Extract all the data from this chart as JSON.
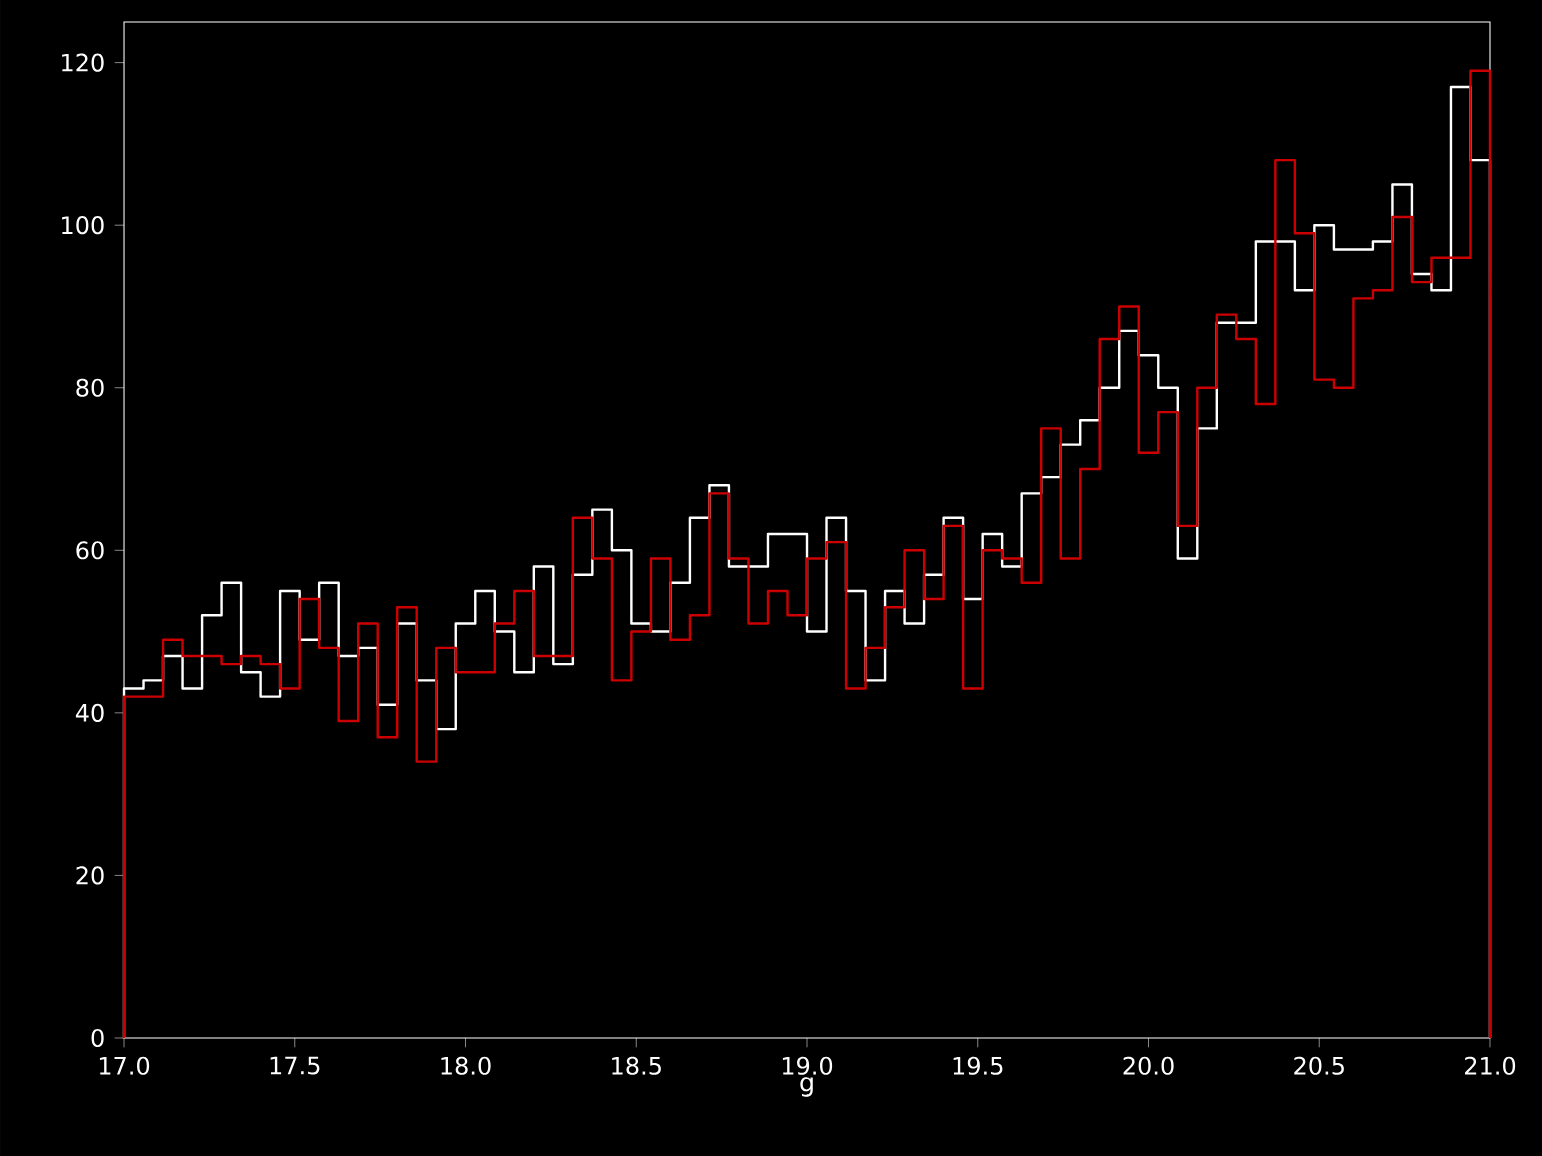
{
  "chart_data": {
    "type": "histogram",
    "xlabel": "g",
    "bins": [
      17.0,
      17.0571,
      17.1143,
      17.1714,
      17.2286,
      17.2857,
      17.3429,
      17.4,
      17.4571,
      17.5143,
      17.5714,
      17.6286,
      17.6857,
      17.7429,
      17.8,
      17.8571,
      17.9143,
      17.9714,
      18.0286,
      18.0857,
      18.1429,
      18.2,
      18.2571,
      18.3143,
      18.3714,
      18.4286,
      18.4857,
      18.5429,
      18.6,
      18.6571,
      18.7143,
      18.7714,
      18.8286,
      18.8857,
      18.9429,
      19.0,
      19.0571,
      19.1143,
      19.1714,
      19.2286,
      19.2857,
      19.3429,
      19.4,
      19.4571,
      19.5143,
      19.5714,
      19.6286,
      19.6857,
      19.7429,
      19.8,
      19.8571,
      19.9143,
      19.9714,
      20.0286,
      20.0857,
      20.1429,
      20.2,
      20.2571,
      20.3143,
      20.3714,
      20.4286,
      20.4857,
      20.5429,
      20.6,
      20.6571,
      20.7143,
      20.7714,
      20.8286,
      20.8857,
      20.9429,
      21.0
    ],
    "series": [
      {
        "color": "#ffffff",
        "values": [
          43,
          44,
          47,
          43,
          52,
          56,
          45,
          42,
          55,
          49,
          56,
          47,
          48,
          41,
          51,
          44,
          38,
          51,
          55,
          50,
          45,
          58,
          46,
          57,
          65,
          60,
          51,
          50,
          56,
          64,
          68,
          58,
          58,
          62,
          62,
          50,
          64,
          55,
          44,
          55,
          51,
          57,
          64,
          54,
          62,
          58,
          67,
          69,
          73,
          76,
          80,
          87,
          84,
          80,
          59,
          75,
          88,
          88,
          98,
          98,
          92,
          100,
          97,
          97,
          98,
          105,
          94,
          92,
          117,
          108
        ]
      },
      {
        "color": "#cc0000",
        "values": [
          42,
          42,
          49,
          47,
          47,
          46,
          47,
          46,
          43,
          54,
          48,
          39,
          51,
          37,
          53,
          34,
          48,
          45,
          45,
          51,
          55,
          47,
          47,
          64,
          59,
          44,
          50,
          59,
          49,
          52,
          67,
          59,
          51,
          55,
          52,
          59,
          61,
          43,
          48,
          53,
          60,
          54,
          63,
          43,
          60,
          59,
          56,
          75,
          59,
          70,
          86,
          90,
          72,
          77,
          63,
          80,
          89,
          86,
          78,
          108,
          99,
          81,
          80,
          91,
          92,
          101,
          93,
          96,
          96,
          119
        ]
      }
    ],
    "xlim": [
      17.0,
      21.0
    ],
    "ylim": [
      0,
      125
    ],
    "xticks": [
      {
        "value": 17.0,
        "label": "17.0"
      },
      {
        "value": 17.5,
        "label": "17.5"
      },
      {
        "value": 18.0,
        "label": "18.0"
      },
      {
        "value": 18.5,
        "label": "18.5"
      },
      {
        "value": 19.0,
        "label": "19.0"
      },
      {
        "value": 19.5,
        "label": "19.5"
      },
      {
        "value": 20.0,
        "label": "20.0"
      },
      {
        "value": 20.5,
        "label": "20.5"
      },
      {
        "value": 21.0,
        "label": "21.0"
      }
    ],
    "yticks": [
      0,
      20,
      40,
      60,
      80,
      100,
      120
    ]
  }
}
